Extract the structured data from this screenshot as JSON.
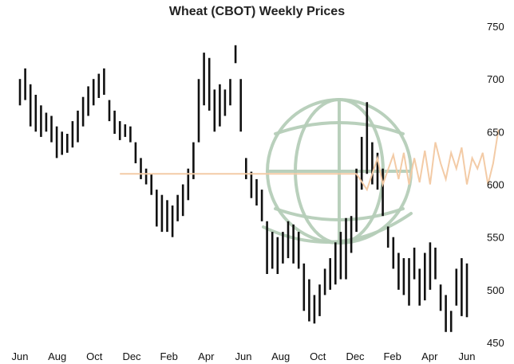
{
  "chart_data": {
    "type": "ohlc",
    "title": "Wheat (CBOT) Weekly Prices",
    "xlabel": "",
    "ylabel": "",
    "ylim": [
      450,
      750
    ],
    "y_ticks": [
      450,
      500,
      550,
      600,
      650,
      700,
      750
    ],
    "y_axis_side": "right",
    "x_ticks": [
      "Jun",
      "Aug",
      "Oct",
      "Dec",
      "Feb",
      "Apr",
      "Jun",
      "Aug",
      "Oct",
      "Dec",
      "Feb",
      "Apr",
      "Jun"
    ],
    "grid": false,
    "bar_color": "#111111",
    "overlay_line_color": "#f3cba6",
    "watermark": "globe",
    "watermark_color": "#b5cdb8",
    "bars": [
      {
        "h": 700,
        "l": 675
      },
      {
        "h": 710,
        "l": 680
      },
      {
        "h": 695,
        "l": 655
      },
      {
        "h": 685,
        "l": 650
      },
      {
        "h": 675,
        "l": 645
      },
      {
        "h": 668,
        "l": 650
      },
      {
        "h": 665,
        "l": 640
      },
      {
        "h": 655,
        "l": 625
      },
      {
        "h": 650,
        "l": 628
      },
      {
        "h": 648,
        "l": 630
      },
      {
        "h": 660,
        "l": 635
      },
      {
        "h": 670,
        "l": 640
      },
      {
        "h": 683,
        "l": 655
      },
      {
        "h": 693,
        "l": 665
      },
      {
        "h": 700,
        "l": 675
      },
      {
        "h": 705,
        "l": 682
      },
      {
        "h": 710,
        "l": 685
      },
      {
        "h": 680,
        "l": 660
      },
      {
        "h": 670,
        "l": 648
      },
      {
        "h": 660,
        "l": 642
      },
      {
        "h": 657,
        "l": 645
      },
      {
        "h": 655,
        "l": 640
      },
      {
        "h": 640,
        "l": 620
      },
      {
        "h": 625,
        "l": 605
      },
      {
        "h": 615,
        "l": 600
      },
      {
        "h": 610,
        "l": 590
      },
      {
        "h": 595,
        "l": 560
      },
      {
        "h": 590,
        "l": 555
      },
      {
        "h": 585,
        "l": 555
      },
      {
        "h": 580,
        "l": 550
      },
      {
        "h": 590,
        "l": 565
      },
      {
        "h": 600,
        "l": 570
      },
      {
        "h": 615,
        "l": 585
      },
      {
        "h": 640,
        "l": 605
      },
      {
        "h": 700,
        "l": 640
      },
      {
        "h": 725,
        "l": 675
      },
      {
        "h": 720,
        "l": 670
      },
      {
        "h": 690,
        "l": 650
      },
      {
        "h": 695,
        "l": 655
      },
      {
        "h": 690,
        "l": 665
      },
      {
        "h": 700,
        "l": 675
      },
      {
        "h": 732,
        "l": 715
      },
      {
        "h": 700,
        "l": 650
      },
      {
        "h": 625,
        "l": 605
      },
      {
        "h": 612,
        "l": 587
      },
      {
        "h": 605,
        "l": 580
      },
      {
        "h": 595,
        "l": 565
      },
      {
        "h": 565,
        "l": 515
      },
      {
        "h": 555,
        "l": 520
      },
      {
        "h": 550,
        "l": 515
      },
      {
        "h": 555,
        "l": 525
      },
      {
        "h": 565,
        "l": 530
      },
      {
        "h": 562,
        "l": 525
      },
      {
        "h": 555,
        "l": 520
      },
      {
        "h": 525,
        "l": 480
      },
      {
        "h": 510,
        "l": 470
      },
      {
        "h": 495,
        "l": 468
      },
      {
        "h": 505,
        "l": 475
      },
      {
        "h": 520,
        "l": 495
      },
      {
        "h": 530,
        "l": 500
      },
      {
        "h": 545,
        "l": 505
      },
      {
        "h": 555,
        "l": 510
      },
      {
        "h": 568,
        "l": 510
      },
      {
        "h": 570,
        "l": 535
      },
      {
        "h": 615,
        "l": 555
      },
      {
        "h": 645,
        "l": 595
      },
      {
        "h": 678,
        "l": 610
      },
      {
        "h": 640,
        "l": 600
      },
      {
        "h": 630,
        "l": 595
      },
      {
        "h": 615,
        "l": 570
      },
      {
        "h": 560,
        "l": 540
      },
      {
        "h": 550,
        "l": 520
      },
      {
        "h": 535,
        "l": 500
      },
      {
        "h": 530,
        "l": 495
      },
      {
        "h": 530,
        "l": 485
      },
      {
        "h": 540,
        "l": 510
      },
      {
        "h": 520,
        "l": 485
      },
      {
        "h": 535,
        "l": 490
      },
      {
        "h": 545,
        "l": 500
      },
      {
        "h": 540,
        "l": 510
      },
      {
        "h": 505,
        "l": 480
      },
      {
        "h": 495,
        "l": 460
      },
      {
        "h": 480,
        "l": 460
      },
      {
        "h": 520,
        "l": 485
      },
      {
        "h": 530,
        "l": 475
      },
      {
        "h": 525,
        "l": 474
      }
    ],
    "overlay_line": [
      {
        "bar": 19,
        "y": 610
      },
      {
        "bar": 64,
        "y": 610
      },
      {
        "bar": 66,
        "y": 595
      },
      {
        "bar": 68,
        "y": 625
      },
      {
        "bar": 69,
        "y": 600
      },
      {
        "bar": 71,
        "y": 628
      },
      {
        "bar": 72,
        "y": 605
      },
      {
        "bar": 73,
        "y": 630
      },
      {
        "bar": 74,
        "y": 600
      },
      {
        "bar": 75,
        "y": 625
      },
      {
        "bar": 76,
        "y": 602
      },
      {
        "bar": 77,
        "y": 632
      },
      {
        "bar": 78,
        "y": 600
      },
      {
        "bar": 79,
        "y": 640
      },
      {
        "bar": 80,
        "y": 620
      },
      {
        "bar": 81,
        "y": 605
      },
      {
        "bar": 82,
        "y": 630
      },
      {
        "bar": 83,
        "y": 615
      },
      {
        "bar": 84,
        "y": 635
      },
      {
        "bar": 85,
        "y": 600
      },
      {
        "bar": 86,
        "y": 625
      },
      {
        "bar": 87,
        "y": 615
      },
      {
        "bar": 88,
        "y": 630
      },
      {
        "bar": 89,
        "y": 600
      },
      {
        "bar": 90,
        "y": 620
      },
      {
        "bar": 91,
        "y": 652
      }
    ]
  }
}
